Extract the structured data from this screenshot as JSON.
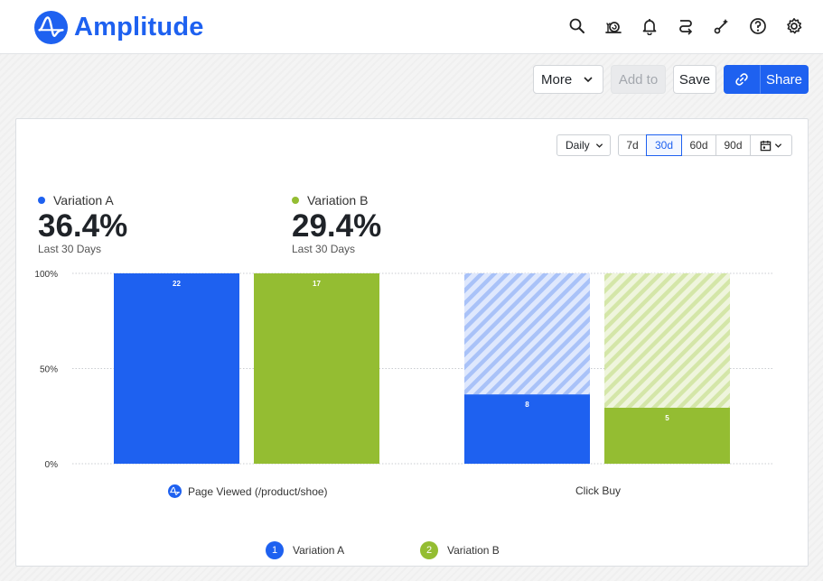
{
  "header": {
    "brand": "Amplitude",
    "icons": [
      "search-icon",
      "snail-icon",
      "bell-icon",
      "route-icon",
      "magic-wand-icon",
      "help-icon",
      "gear-icon"
    ]
  },
  "toolbar": {
    "more_label": "More",
    "add_to_label": "Add to",
    "save_label": "Save",
    "share_label": "Share"
  },
  "controls": {
    "interval": "Daily",
    "ranges": [
      "7d",
      "30d",
      "60d",
      "90d"
    ],
    "active_range": "30d"
  },
  "metrics": [
    {
      "label": "Variation A",
      "value": "36.4%",
      "sublabel": "Last 30 Days",
      "color": "#1e61f0"
    },
    {
      "label": "Variation B",
      "value": "29.4%",
      "sublabel": "Last 30 Days",
      "color": "#94bd32"
    }
  ],
  "chart_data": {
    "type": "bar",
    "categories": [
      "Page Viewed (/product/shoe)",
      "Click Buy"
    ],
    "series": [
      {
        "name": "Variation A",
        "values": [
          100,
          36.4
        ],
        "counts": [
          "22",
          "8"
        ],
        "color": "#1e61f0"
      },
      {
        "name": "Variation B",
        "values": [
          100,
          29.4
        ],
        "counts": [
          "17",
          "5"
        ],
        "color": "#94bd32"
      }
    ],
    "yticks": [
      "100%",
      "50%",
      "0%"
    ],
    "ylim": [
      0,
      100
    ],
    "grid": true,
    "legend_position": "bottom"
  },
  "legend": [
    {
      "num": "1",
      "label": "Variation A",
      "color": "#1e61f0"
    },
    {
      "num": "2",
      "label": "Variation B",
      "color": "#94bd32"
    }
  ]
}
